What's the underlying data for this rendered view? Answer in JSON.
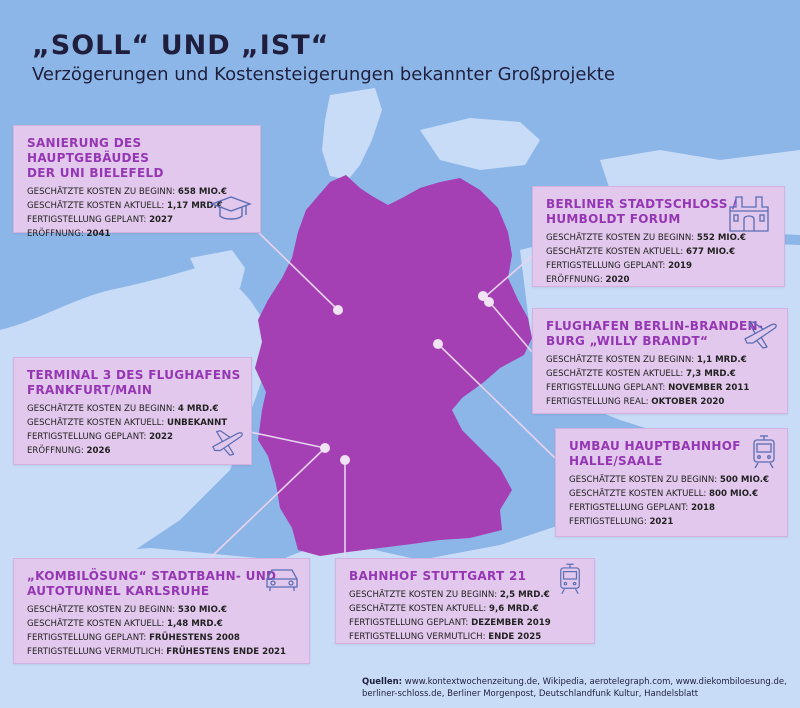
{
  "header": {
    "title": "„SOLL“ UND „IST“",
    "subtitle": "Verzögerungen und Kostensteigerungen bekannter Großprojekte"
  },
  "colors": {
    "sea": "#8db6e8",
    "land": "#c9dcf7",
    "germany": "#a43fb4",
    "card": "#e2c8ec",
    "accent": "#9536b5"
  },
  "projects": [
    {
      "id": "bielefeld",
      "title_l1": "SANIERUNG DES HAUPTGEBÄUDES",
      "title_l2": "DER UNI BIELEFELD",
      "icon": "graduation-cap-icon",
      "rows": [
        {
          "label": "GESCHÄTZTE KOSTEN ZU BEGINN:",
          "value": "658 MIO.€"
        },
        {
          "label": "GESCHÄTZTE KOSTEN AKTUELL:",
          "value": "1,17 MRD.€"
        },
        {
          "label": "FERTIGSTELLUNG GEPLANT:",
          "value": "2027"
        },
        {
          "label": "ERÖFFNUNG:",
          "value": "2041"
        }
      ]
    },
    {
      "id": "schloss",
      "title_l1": "BERLINER STADTSCHLOSS /",
      "title_l2": "HUMBOLDT FORUM",
      "icon": "castle-icon",
      "rows": [
        {
          "label": "GESCHÄTZTE KOSTEN ZU BEGINN:",
          "value": "552 MIO.€"
        },
        {
          "label": "GESCHÄTZTE KOSTEN AKTUELL:",
          "value": "677 MIO.€"
        },
        {
          "label": "FERTIGSTELLUNG GEPLANT:",
          "value": "2019"
        },
        {
          "label": "ERÖFFNUNG:",
          "value": "2020"
        }
      ]
    },
    {
      "id": "ber",
      "title_l1": "FLUGHAFEN BERLIN-BRANDEN-",
      "title_l2": "BURG „WILLY BRANDT“",
      "icon": "airplane-icon",
      "rows": [
        {
          "label": "GESCHÄTZTE KOSTEN ZU BEGINN:",
          "value": "1,1 MRD.€"
        },
        {
          "label": "GESCHÄTZTE KOSTEN AKTUELL:",
          "value": "7,3 MRD.€"
        },
        {
          "label": "FERTIGSTELLUNG GEPLANT:",
          "value": "NOVEMBER 2011"
        },
        {
          "label": "FERTIGSTELLUNG REAL:",
          "value": "OKTOBER 2020"
        }
      ]
    },
    {
      "id": "frankfurt",
      "title_l1": "TERMINAL 3 DES FLUGHAFENS",
      "title_l2": "FRANKFURT/MAIN",
      "icon": "airplane-icon",
      "rows": [
        {
          "label": "GESCHÄTZTE KOSTEN ZU BEGINN:",
          "value": "4 MRD.€"
        },
        {
          "label": "GESCHÄTZTE KOSTEN AKTUELL:",
          "value": "UNBEKANNT"
        },
        {
          "label": "FERTIGSTELLUNG GEPLANT:",
          "value": "2022"
        },
        {
          "label": "ERÖFFNUNG:",
          "value": "2026"
        }
      ]
    },
    {
      "id": "halle",
      "title_l1": "UMBAU HAUPTBAHNHOF",
      "title_l2": "HALLE/SAALE",
      "icon": "train-icon",
      "rows": [
        {
          "label": "GESCHÄTZTE KOSTEN ZU BEGINN:",
          "value": "500 MIO.€"
        },
        {
          "label": "GESCHÄTZTE KOSTEN AKTUELL:",
          "value": "800 MIO.€"
        },
        {
          "label": "FERTIGSTELLUNG GEPLANT:",
          "value": "2018"
        },
        {
          "label": "FERTIGSTELLUNG:",
          "value": "2021"
        }
      ]
    },
    {
      "id": "karlsruhe",
      "title_l1": "„KOMBILÖSUNG“ STADTBAHN- UND",
      "title_l2": "AUTOTUNNEL KARLSRUHE",
      "icon": "car-icon",
      "rows": [
        {
          "label": "GESCHÄTZTE KOSTEN ZU BEGINN:",
          "value": "530 MIO.€"
        },
        {
          "label": "GESCHÄTZTE KOSTEN AKTUELL:",
          "value": "1,48 MRD.€"
        },
        {
          "label": "FERTIGSTELLUNG GEPLANT:",
          "value": "FRÜHESTENS 2008"
        },
        {
          "label": "FERTIGSTELLUNG VERMUTLICH:",
          "value": "FRÜHESTENS ENDE 2021"
        }
      ]
    },
    {
      "id": "stuttgart",
      "title_l1": "BAHNHOF STUTTGART 21",
      "title_l2": "",
      "icon": "train-icon",
      "rows": [
        {
          "label": "GESCHÄTZTE KOSTEN ZU BEGINN:",
          "value": "2,5 MRD.€"
        },
        {
          "label": "GESCHÄTZTE KOSTEN AKTUELL:",
          "value": "9,6 MRD.€"
        },
        {
          "label": "FERTIGSTELLUNG GEPLANT:",
          "value": "DEZEMBER 2019"
        },
        {
          "label": "FERTIGSTELLUNG VERMUTLICH:",
          "value": "ENDE 2025"
        }
      ]
    }
  ],
  "sources": {
    "label": "Quellen:",
    "line1": "www.kontextwochenzeitung.de, Wikipedia, aerotelegraph.com, www.diekombiloesung.de,",
    "line2": "berliner-schloss.de, Berliner Morgenpost, Deutschlandfunk Kultur, Handelsblatt"
  }
}
